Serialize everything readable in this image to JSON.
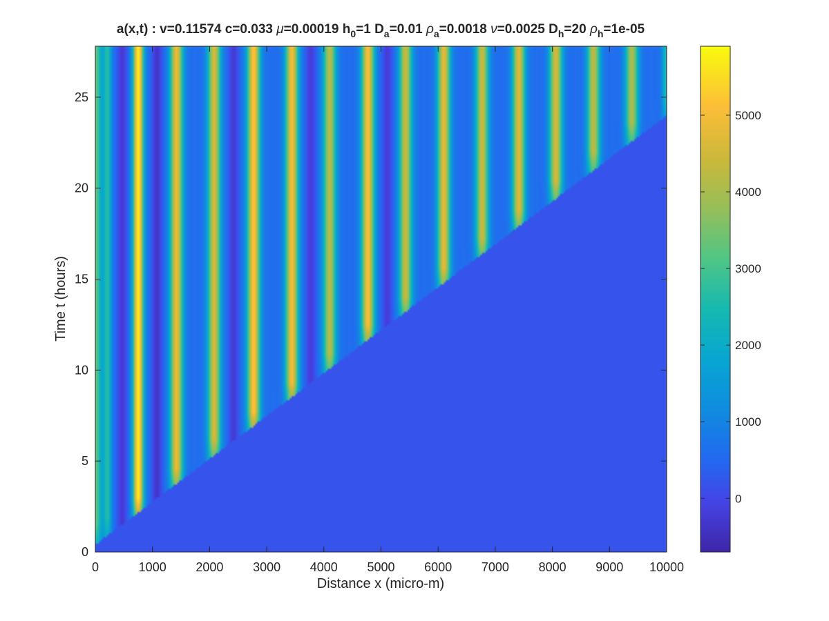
{
  "chart_data": {
    "type": "heatmap",
    "title": "a(x,t) :  v=0.11574 c=0.033 μ=0.00019 h₀=1 Dₐ=0.01 ρₐ=0.0018 ν=0.0025 Dₕ=20 ρₕ=1e-05",
    "title_parts": [
      {
        "text": "a(x,t) :  v=0.11574 c=0.033 ",
        "style": "normal"
      },
      {
        "text": "μ",
        "style": "greek"
      },
      {
        "text": "=0.00019 h",
        "style": "normal"
      },
      {
        "text": "0",
        "style": "sub"
      },
      {
        "text": "=1 D",
        "style": "normal"
      },
      {
        "text": "a",
        "style": "sub"
      },
      {
        "text": "=0.01 ",
        "style": "normal"
      },
      {
        "text": "ρ",
        "style": "greek"
      },
      {
        "text": "a",
        "style": "sub"
      },
      {
        "text": "=0.0018 ",
        "style": "normal"
      },
      {
        "text": "ν",
        "style": "greek"
      },
      {
        "text": "=0.0025 D",
        "style": "normal"
      },
      {
        "text": "h",
        "style": "sub"
      },
      {
        "text": "=20 ",
        "style": "normal"
      },
      {
        "text": "ρ",
        "style": "greek"
      },
      {
        "text": "h",
        "style": "sub"
      },
      {
        "text": "=1e-05",
        "style": "normal"
      }
    ],
    "xlabel": "Distance x (micro-m)",
    "ylabel": "Time t (hours)",
    "xlim": [
      0,
      10000
    ],
    "ylim": [
      0,
      27.8
    ],
    "xticks": [
      0,
      1000,
      2000,
      3000,
      4000,
      5000,
      6000,
      7000,
      8000,
      9000,
      10000
    ],
    "yticks": [
      0,
      5,
      10,
      15,
      20,
      25
    ],
    "colorbar": {
      "label": "",
      "range": [
        -700,
        5900
      ],
      "ticks": [
        0,
        1000,
        2000,
        3000,
        4000,
        5000
      ],
      "colormap": "parula"
    },
    "background_value": 200,
    "front": {
      "description": "activity front moving linearly in x over time",
      "x_start": 0,
      "t_start": 0.4,
      "x_end": 10000,
      "t_end": 24
    },
    "stripes": [
      {
        "x": 0,
        "half_width": 110,
        "peak": 3300,
        "onset_t": 0.2
      },
      {
        "x": 210,
        "half_width": 70,
        "peak": 2600,
        "onset_t": 0.5
      },
      {
        "x": 750,
        "half_width": 90,
        "peak": 5800,
        "onset_t": 1.6
      },
      {
        "x": 1420,
        "half_width": 110,
        "peak": 4900,
        "onset_t": 3.2
      },
      {
        "x": 2080,
        "half_width": 110,
        "peak": 4600,
        "onset_t": 4.8
      },
      {
        "x": 2770,
        "half_width": 110,
        "peak": 5200,
        "onset_t": 6.3
      },
      {
        "x": 3440,
        "half_width": 110,
        "peak": 5000,
        "onset_t": 7.9
      },
      {
        "x": 4100,
        "half_width": 110,
        "peak": 4200,
        "onset_t": 9.5
      },
      {
        "x": 4770,
        "half_width": 110,
        "peak": 5100,
        "onset_t": 11.1
      },
      {
        "x": 5430,
        "half_width": 110,
        "peak": 4400,
        "onset_t": 12.6
      },
      {
        "x": 6100,
        "half_width": 110,
        "peak": 4800,
        "onset_t": 14.2
      },
      {
        "x": 6770,
        "half_width": 110,
        "peak": 4400,
        "onset_t": 15.8
      },
      {
        "x": 7410,
        "half_width": 110,
        "peak": 4700,
        "onset_t": 17.4
      },
      {
        "x": 8060,
        "half_width": 110,
        "peak": 4600,
        "onset_t": 19.0
      },
      {
        "x": 8720,
        "half_width": 110,
        "peak": 4300,
        "onset_t": 20.6
      },
      {
        "x": 9390,
        "half_width": 110,
        "peak": 4100,
        "onset_t": 22.2
      },
      {
        "x": 9990,
        "half_width": 70,
        "peak": 2400,
        "onset_t": 23.8
      }
    ],
    "troughs": [
      {
        "x": 470,
        "value": -250
      },
      {
        "x": 1080,
        "value": -350
      },
      {
        "x": 2420,
        "value": -250
      },
      {
        "x": 3770,
        "value": -200
      },
      {
        "x": 5110,
        "value": -200
      }
    ]
  }
}
